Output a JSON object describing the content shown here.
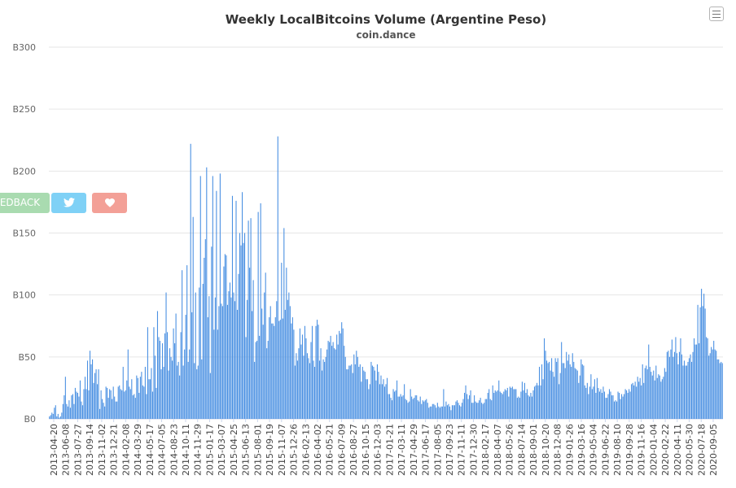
{
  "chart_data": {
    "type": "bar",
    "title": "Weekly LocalBitcoins Volume (Argentine Peso)",
    "subtitle": "coin.dance",
    "y_ticks": [
      "B0",
      "B50",
      "B100",
      "B150",
      "B200",
      "B250",
      "B300"
    ],
    "ylim": [
      0,
      300
    ],
    "grid": true,
    "bar_color": "#4a90e2",
    "x_tick_labels": [
      "2013-04-20",
      "2013-06-08",
      "2013-07-27",
      "2013-09-14",
      "2013-11-02",
      "2013-12-21",
      "2014-02-08",
      "2014-03-29",
      "2014-05-17",
      "2014-07-05",
      "2014-08-23",
      "2014-10-11",
      "2014-11-29",
      "2015-01-17",
      "2015-03-07",
      "2015-04-25",
      "2015-06-13",
      "2015-08-01",
      "2015-09-19",
      "2015-11-07",
      "2015-12-26",
      "2016-02-13",
      "2016-04-02",
      "2016-05-21",
      "2016-07-09",
      "2016-08-27",
      "2016-10-15",
      "2016-12-03",
      "2017-01-21",
      "2017-03-11",
      "2017-04-29",
      "2017-06-17",
      "2017-08-05",
      "2017-09-23",
      "2017-11-11",
      "2017-12-30",
      "2018-02-17",
      "2018-04-07",
      "2018-05-26",
      "2018-07-14",
      "2018-09-01",
      "2018-10-20",
      "2018-12-08",
      "2019-01-26",
      "2019-03-16",
      "2019-05-04",
      "2019-06-22",
      "2019-08-10",
      "2019-09-28",
      "2019-11-16",
      "2020-01-04",
      "2020-02-22",
      "2020-04-11",
      "2020-05-30",
      "2020-07-18",
      "2020-09-05"
    ],
    "values": [
      2,
      3,
      5,
      4,
      9,
      11,
      2,
      4,
      1,
      2,
      5,
      12,
      19,
      34,
      12,
      10,
      15,
      9,
      19,
      20,
      12,
      25,
      22,
      21,
      18,
      31,
      14,
      11,
      24,
      34,
      24,
      47,
      23,
      55,
      44,
      48,
      29,
      37,
      40,
      28,
      40,
      8,
      23,
      16,
      13,
      10,
      26,
      25,
      17,
      24,
      23,
      16,
      26,
      18,
      14,
      14,
      26,
      27,
      24,
      23,
      42,
      22,
      23,
      31,
      56,
      26,
      24,
      32,
      19,
      20,
      17,
      35,
      33,
      21,
      34,
      38,
      27,
      26,
      42,
      20,
      74,
      32,
      32,
      41,
      22,
      74,
      51,
      25,
      87,
      66,
      63,
      40,
      61,
      42,
      69,
      102,
      70,
      39,
      57,
      50,
      47,
      73,
      61,
      85,
      43,
      46,
      35,
      70,
      120,
      43,
      56,
      84,
      124,
      46,
      56,
      222,
      86,
      163,
      45,
      102,
      40,
      43,
      106,
      196,
      48,
      109,
      130,
      145,
      203,
      82,
      99,
      37,
      139,
      196,
      72,
      98,
      184,
      72,
      91,
      198,
      93,
      91,
      123,
      133,
      132,
      92,
      103,
      110,
      98,
      180,
      102,
      95,
      176,
      88,
      117,
      150,
      140,
      183,
      142,
      150,
      66,
      96,
      160,
      122,
      162,
      87,
      112,
      46,
      62,
      63,
      167,
      67,
      174,
      89,
      76,
      102,
      118,
      57,
      63,
      82,
      91,
      77,
      77,
      75,
      82,
      95,
      228,
      79,
      80,
      126,
      81,
      154,
      88,
      122,
      96,
      102,
      91,
      77,
      82,
      72,
      43,
      53,
      47,
      57,
      73,
      60,
      68,
      51,
      75,
      65,
      53,
      49,
      45,
      62,
      75,
      47,
      42,
      75,
      80,
      76,
      47,
      57,
      39,
      48,
      46,
      50,
      56,
      63,
      62,
      67,
      59,
      62,
      57,
      56,
      68,
      60,
      71,
      69,
      78,
      73,
      59,
      50,
      40,
      40,
      43,
      43,
      44,
      37,
      52,
      44,
      55,
      50,
      42,
      44,
      30,
      42,
      39,
      38,
      32,
      32,
      24,
      28,
      46,
      43,
      42,
      39,
      31,
      44,
      38,
      28,
      35,
      28,
      32,
      26,
      28,
      33,
      20,
      20,
      17,
      15,
      24,
      22,
      23,
      31,
      18,
      18,
      20,
      18,
      19,
      28,
      16,
      15,
      13,
      14,
      24,
      18,
      16,
      17,
      19,
      19,
      15,
      14,
      18,
      12,
      15,
      14,
      15,
      16,
      13,
      9,
      10,
      10,
      12,
      12,
      11,
      9,
      13,
      10,
      9,
      10,
      10,
      24,
      10,
      14,
      11,
      12,
      10,
      7,
      11,
      11,
      11,
      14,
      15,
      13,
      11,
      10,
      13,
      16,
      21,
      27,
      20,
      16,
      19,
      23,
      13,
      13,
      19,
      14,
      13,
      13,
      15,
      17,
      13,
      12,
      13,
      16,
      16,
      21,
      24,
      16,
      15,
      27,
      21,
      23,
      22,
      23,
      31,
      22,
      21,
      20,
      22,
      24,
      23,
      25,
      18,
      26,
      25,
      26,
      24,
      24,
      24,
      17,
      18,
      17,
      22,
      30,
      23,
      29,
      21,
      24,
      19,
      18,
      21,
      18,
      23,
      26,
      27,
      29,
      27,
      42,
      27,
      44,
      32,
      65,
      55,
      47,
      45,
      46,
      39,
      49,
      38,
      34,
      49,
      46,
      49,
      28,
      37,
      62,
      45,
      45,
      41,
      54,
      47,
      52,
      44,
      42,
      53,
      46,
      41,
      40,
      39,
      29,
      35,
      48,
      44,
      43,
      27,
      25,
      29,
      20,
      26,
      36,
      24,
      26,
      32,
      21,
      33,
      25,
      22,
      24,
      21,
      26,
      22,
      17,
      17,
      20,
      24,
      22,
      19,
      19,
      14,
      15,
      14,
      22,
      21,
      16,
      20,
      18,
      20,
      24,
      23,
      21,
      24,
      22,
      28,
      29,
      27,
      30,
      26,
      34,
      30,
      33,
      27,
      44,
      29,
      41,
      43,
      40,
      60,
      42,
      38,
      35,
      39,
      31,
      43,
      33,
      36,
      35,
      30,
      32,
      34,
      41,
      38,
      54,
      55,
      50,
      56,
      64,
      50,
      54,
      66,
      53,
      44,
      54,
      65,
      52,
      43,
      47,
      43,
      43,
      46,
      49,
      52,
      46,
      54,
      65,
      60,
      60,
      92,
      61,
      90,
      105,
      91,
      101,
      89,
      66,
      65,
      51,
      53,
      58,
      56,
      63,
      56,
      55,
      48,
      48,
      45,
      46,
      45
    ]
  }
}
